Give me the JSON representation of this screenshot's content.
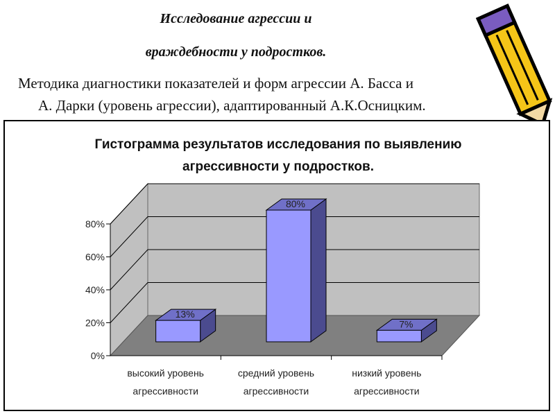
{
  "header": {
    "title_line1": "Исследование агрессии и",
    "title_line2": "враждебности у подростков.",
    "subtitle_line1": "Методика диагностики показателей и форм агрессии А. Басса и",
    "subtitle_line2": "А. Дарки (уровень агрессии), адаптированный А.К.Осницким."
  },
  "decor": {
    "pencil_icon": "pencil-icon",
    "pencil_color": "#F5C518",
    "pencil_outline": "#000000"
  },
  "chart_data": {
    "type": "bar",
    "title_line1": "Гистограмма результатов  исследования по выявлению",
    "title_line2": "агрессивности у подростков.",
    "categories": [
      [
        "высокий уровень",
        "агрессивности"
      ],
      [
        "средний уровень",
        "агрессивности"
      ],
      [
        "низкий уровень",
        "агрессивности"
      ]
    ],
    "values": [
      13,
      80,
      7
    ],
    "data_labels": [
      "13%",
      "80%",
      "7%"
    ],
    "yticks": [
      "0%",
      "20%",
      "40%",
      "60%",
      "80%"
    ],
    "ylim": [
      0,
      80
    ],
    "grid": true,
    "bar_color": "#9999FF",
    "bar_side_color": "#4B4B8F",
    "bar_top_color": "#7070C8",
    "wall_color": "#C0C0C0",
    "floor_color": "#808080"
  }
}
